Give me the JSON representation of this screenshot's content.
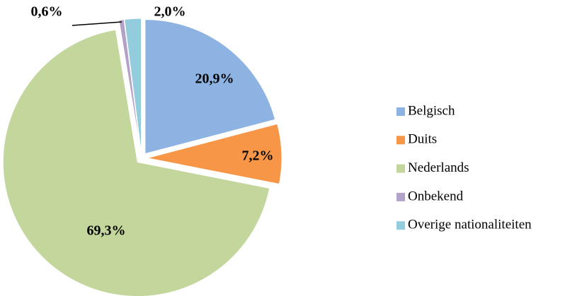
{
  "chart_data": {
    "type": "pie",
    "categories": [
      "Belgisch",
      "Duits",
      "Nederlands",
      "Onbekend",
      "Overige nationaliteiten"
    ],
    "values": [
      20.9,
      7.2,
      69.3,
      0.6,
      2.0
    ],
    "value_labels": [
      "20,9%",
      "7,2%",
      "69,3%",
      "0,6%",
      "2,0%"
    ],
    "colors": [
      "#8db3e2",
      "#f79646",
      "#c3d69b",
      "#b3a2c7",
      "#93cddd"
    ],
    "legend": "right"
  }
}
